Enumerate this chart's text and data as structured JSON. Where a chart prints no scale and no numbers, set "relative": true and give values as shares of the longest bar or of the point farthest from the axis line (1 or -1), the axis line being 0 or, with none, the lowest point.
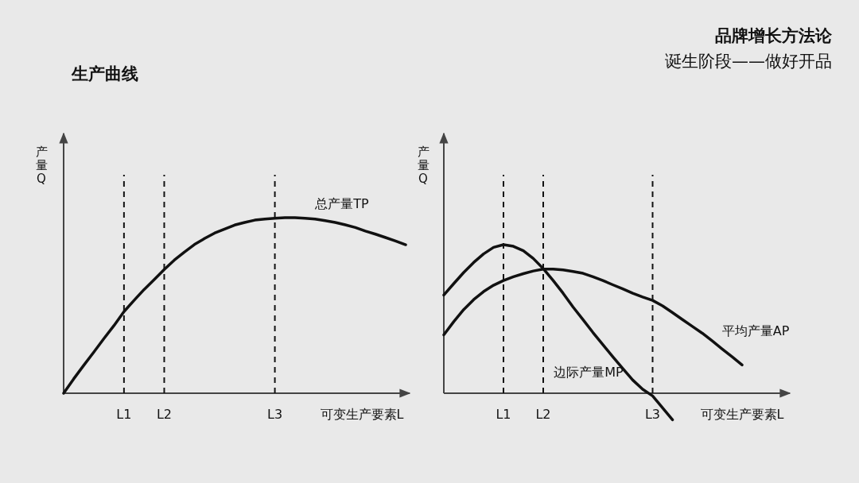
{
  "chart_data": [
    {
      "type": "line",
      "title": "生产曲线",
      "xlabel": "可变生产要素L",
      "ylabel": "产量Q",
      "relative": true,
      "categories": [
        null,
        null,
        null,
        null,
        null,
        null,
        "L1",
        null,
        null,
        null,
        "L2",
        null,
        null,
        null,
        null,
        null,
        null,
        null,
        null,
        null,
        null,
        "L3",
        null,
        null,
        null,
        null,
        null,
        null,
        null,
        null,
        null,
        null,
        null,
        null,
        null
      ],
      "ref_lines": [
        {
          "axis": "x",
          "value": "L1",
          "line_style": "dashed",
          "color": "#111111"
        },
        {
          "axis": "x",
          "value": "L2",
          "line_style": "dashed",
          "color": "#111111"
        },
        {
          "axis": "x",
          "value": "L3",
          "line_style": "dashed",
          "color": "#111111"
        }
      ],
      "series": [
        {
          "name": "总产量TP",
          "color": "#111111",
          "values": [
            0,
            0.082,
            0.159,
            0.234,
            0.311,
            0.385,
            0.465,
            0.529,
            0.591,
            0.647,
            0.705,
            0.758,
            0.804,
            0.847,
            0.881,
            0.912,
            0.935,
            0.958,
            0.973,
            0.986,
            0.992,
            0.997,
            1,
            1,
            0.997,
            0.992,
            0.983,
            0.973,
            0.959,
            0.944,
            0.924,
            0.906,
            0.887,
            0.867,
            0.846
          ]
        }
      ]
    },
    {
      "type": "line",
      "title": "品牌增长方法论",
      "subtitle": "诞生阶段——做好开品",
      "xlabel": "可变生产要素L",
      "ylabel": "产量Q",
      "relative": true,
      "categories": [
        null,
        null,
        null,
        null,
        null,
        null,
        "L1",
        null,
        null,
        null,
        "L2",
        null,
        null,
        null,
        null,
        null,
        null,
        null,
        null,
        null,
        null,
        "L3",
        null,
        null,
        null,
        null,
        null,
        null,
        null,
        null,
        null,
        null,
        null,
        null,
        null
      ],
      "ref_lines": [
        {
          "axis": "x",
          "value": "L1",
          "line_style": "dashed",
          "color": "#111111"
        },
        {
          "axis": "x",
          "value": "L2",
          "line_style": "dashed",
          "color": "#111111"
        },
        {
          "axis": "x",
          "value": "L3",
          "line_style": "dashed",
          "color": "#111111"
        }
      ],
      "series": [
        {
          "name": "边际产量MP",
          "color": "#111111",
          "values": [
            0.661,
            0.738,
            0.813,
            0.88,
            0.938,
            0.982,
            1,
            0.989,
            0.959,
            0.907,
            0.839,
            0.759,
            0.673,
            0.58,
            0.495,
            0.409,
            0.327,
            0.245,
            0.166,
            0.089,
            0.027,
            -0.018,
            -0.098,
            -0.179,
            null,
            null,
            null,
            null,
            null,
            null,
            null,
            null,
            null,
            null,
            null
          ]
        },
        {
          "name": "平均产量AP",
          "color": "#111111",
          "values": [
            0.393,
            0.482,
            0.563,
            0.63,
            0.684,
            0.727,
            0.759,
            0.784,
            0.805,
            0.823,
            0.836,
            0.836,
            0.83,
            0.82,
            0.807,
            0.784,
            0.759,
            0.73,
            0.702,
            0.673,
            0.648,
            0.625,
            0.588,
            0.543,
            0.496,
            0.45,
            0.404,
            0.352,
            0.298,
            0.245,
            0.191,
            null,
            null,
            null,
            null
          ]
        }
      ]
    }
  ]
}
